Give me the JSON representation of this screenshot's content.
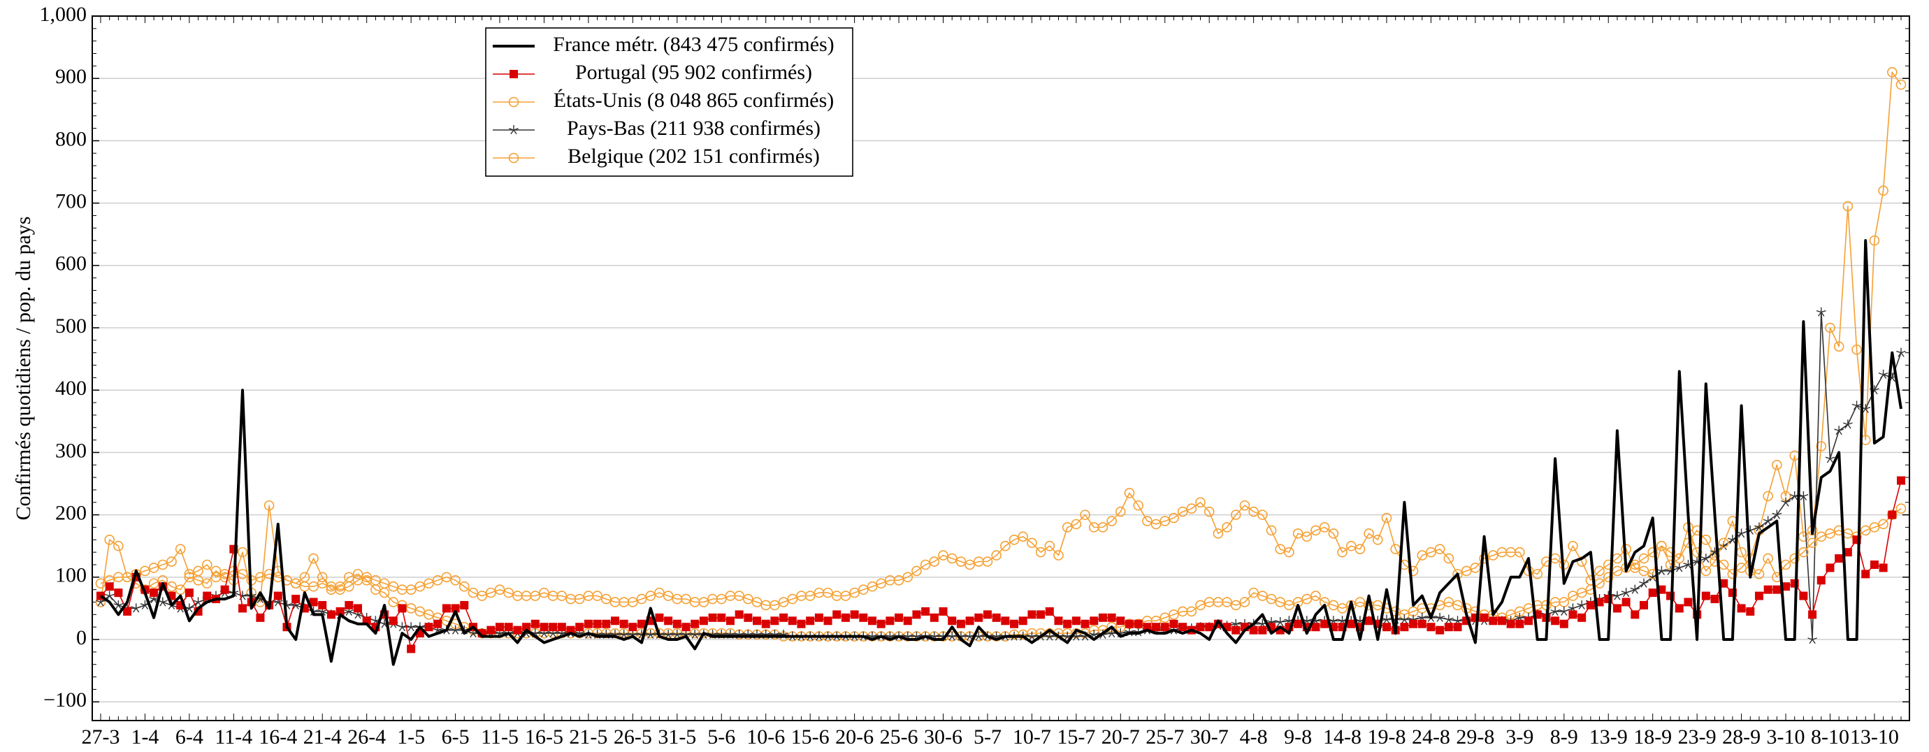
{
  "chart_data": {
    "type": "line",
    "y_label": "Confirmés quotidiens / pop. du pays",
    "categories": [
      "27-3",
      null,
      null,
      null,
      null,
      "1-4",
      null,
      null,
      null,
      null,
      "6-4",
      null,
      null,
      null,
      null,
      "11-4",
      null,
      null,
      null,
      null,
      "16-4",
      null,
      null,
      null,
      null,
      "21-4",
      null,
      null,
      null,
      null,
      "26-4",
      null,
      null,
      null,
      null,
      "1-5",
      null,
      null,
      null,
      null,
      "6-5",
      null,
      null,
      null,
      null,
      "11-5",
      null,
      null,
      null,
      null,
      "16-5",
      null,
      null,
      null,
      null,
      "21-5",
      null,
      null,
      null,
      null,
      "26-5",
      null,
      null,
      null,
      null,
      "31-5",
      null,
      null,
      null,
      null,
      "5-6",
      null,
      null,
      null,
      null,
      "10-6",
      null,
      null,
      null,
      null,
      "15-6",
      null,
      null,
      null,
      null,
      "20-6",
      null,
      null,
      null,
      null,
      "25-6",
      null,
      null,
      null,
      null,
      "30-6",
      null,
      null,
      null,
      null,
      "5-7",
      null,
      null,
      null,
      null,
      "10-7",
      null,
      null,
      null,
      null,
      "15-7",
      null,
      null,
      null,
      null,
      "20-7",
      null,
      null,
      null,
      null,
      "25-7",
      null,
      null,
      null,
      null,
      "30-7",
      null,
      null,
      null,
      null,
      "4-8",
      null,
      null,
      null,
      null,
      "9-8",
      null,
      null,
      null,
      null,
      "14-8",
      null,
      null,
      null,
      null,
      "19-8",
      null,
      null,
      null,
      null,
      "24-8",
      null,
      null,
      null,
      null,
      "29-8",
      null,
      null,
      null,
      null,
      "3-9",
      null,
      null,
      null,
      null,
      "8-9",
      null,
      null,
      null,
      null,
      "13-9",
      null,
      null,
      null,
      null,
      "18-9",
      null,
      null,
      null,
      null,
      "23-9",
      null,
      null,
      null,
      null,
      "28-9",
      null,
      null,
      null,
      null,
      "3-10",
      null,
      null,
      null,
      null,
      "8-10",
      null,
      null,
      null,
      null,
      "13-10",
      null,
      null,
      null
    ],
    "ylim": [
      -130,
      1000
    ],
    "yticks": [
      {
        "value": -100,
        "label": "−100"
      },
      0,
      100,
      200,
      300,
      400,
      500,
      600,
      700,
      800,
      900,
      {
        "value": 1000,
        "label": "1,000"
      }
    ],
    "grid": true,
    "legend": "upper left",
    "series": [
      {
        "name": "France métr. (843 475 confirmés)",
        "color": "#000000",
        "marker": "none",
        "values": [
          70,
          60,
          40,
          60,
          110,
          75,
          35,
          90,
          55,
          70,
          30,
          50,
          60,
          65,
          65,
          70,
          400,
          50,
          75,
          50,
          185,
          20,
          0,
          75,
          40,
          40,
          -35,
          40,
          30,
          25,
          25,
          10,
          55,
          -40,
          10,
          0,
          20,
          5,
          10,
          15,
          45,
          10,
          20,
          5,
          5,
          5,
          10,
          -5,
          15,
          5,
          -5,
          0,
          5,
          10,
          5,
          10,
          5,
          5,
          5,
          0,
          5,
          -5,
          50,
          5,
          0,
          0,
          5,
          -15,
          10,
          5,
          5,
          5,
          5,
          5,
          5,
          5,
          5,
          5,
          5,
          5,
          5,
          5,
          5,
          5,
          5,
          5,
          5,
          0,
          5,
          0,
          5,
          0,
          0,
          5,
          0,
          0,
          20,
          0,
          -10,
          20,
          5,
          0,
          5,
          5,
          5,
          -5,
          5,
          15,
          5,
          -5,
          15,
          10,
          0,
          10,
          20,
          5,
          10,
          10,
          15,
          10,
          10,
          15,
          10,
          15,
          10,
          0,
          30,
          10,
          -5,
          15,
          25,
          40,
          10,
          20,
          10,
          55,
          10,
          40,
          55,
          0,
          0,
          60,
          0,
          70,
          0,
          80,
          10,
          220,
          55,
          70,
          35,
          75,
          90,
          105,
          40,
          -5,
          165,
          40,
          60,
          100,
          100,
          130,
          0,
          0,
          290,
          90,
          125,
          130,
          140,
          0,
          0,
          335,
          110,
          140,
          150,
          195,
          0,
          0,
          430,
          200,
          0,
          410,
          200,
          0,
          0,
          375,
          100,
          170,
          180,
          190,
          0,
          0,
          510,
          170,
          260,
          270,
          300,
          0,
          0,
          640,
          315,
          325,
          460,
          370
        ]
      },
      {
        "name": "Portugal (95 902 confirmés)",
        "color": "#d90000",
        "marker": "square",
        "values": [
          70,
          85,
          75,
          45,
          100,
          80,
          75,
          85,
          70,
          55,
          75,
          45,
          70,
          65,
          80,
          145,
          50,
          60,
          35,
          55,
          70,
          20,
          65,
          50,
          60,
          55,
          40,
          45,
          55,
          50,
          30,
          20,
          40,
          30,
          50,
          -15,
          10,
          20,
          25,
          50,
          50,
          55,
          20,
          10,
          15,
          20,
          20,
          15,
          20,
          25,
          20,
          20,
          20,
          15,
          20,
          25,
          25,
          25,
          30,
          25,
          20,
          25,
          30,
          35,
          30,
          25,
          20,
          25,
          30,
          35,
          35,
          30,
          40,
          35,
          30,
          25,
          30,
          35,
          30,
          25,
          30,
          35,
          30,
          40,
          35,
          40,
          35,
          30,
          25,
          30,
          35,
          30,
          40,
          45,
          35,
          45,
          30,
          25,
          30,
          35,
          40,
          35,
          30,
          25,
          30,
          40,
          40,
          45,
          30,
          25,
          30,
          25,
          30,
          35,
          35,
          30,
          25,
          25,
          20,
          20,
          20,
          25,
          20,
          15,
          20,
          20,
          25,
          20,
          15,
          20,
          15,
          15,
          20,
          15,
          20,
          25,
          20,
          20,
          25,
          20,
          20,
          25,
          20,
          30,
          25,
          20,
          15,
          20,
          25,
          25,
          20,
          15,
          20,
          20,
          30,
          35,
          35,
          30,
          30,
          25,
          25,
          30,
          40,
          35,
          30,
          25,
          40,
          35,
          55,
          60,
          65,
          50,
          60,
          40,
          55,
          75,
          80,
          70,
          50,
          60,
          40,
          70,
          65,
          90,
          75,
          50,
          45,
          70,
          80,
          80,
          85,
          90,
          70,
          40,
          95,
          115,
          130,
          140,
          160,
          105,
          120,
          115,
          200,
          255
        ]
      },
      {
        "name": "États-Unis (8 048 865 confirmés)",
        "color": "#f5a033",
        "marker": "circle",
        "values": [
          90,
          95,
          100,
          100,
          105,
          110,
          115,
          120,
          125,
          145,
          105,
          110,
          120,
          100,
          105,
          110,
          105,
          95,
          100,
          105,
          100,
          95,
          90,
          85,
          85,
          90,
          85,
          80,
          85,
          95,
          100,
          95,
          90,
          85,
          80,
          80,
          85,
          90,
          95,
          100,
          95,
          85,
          75,
          70,
          75,
          80,
          75,
          70,
          70,
          70,
          75,
          70,
          70,
          65,
          65,
          70,
          70,
          65,
          60,
          60,
          60,
          65,
          70,
          75,
          70,
          65,
          65,
          60,
          60,
          65,
          65,
          70,
          70,
          65,
          60,
          55,
          55,
          60,
          65,
          70,
          70,
          75,
          75,
          70,
          70,
          75,
          80,
          85,
          90,
          95,
          95,
          100,
          110,
          120,
          125,
          135,
          130,
          125,
          120,
          125,
          125,
          135,
          150,
          160,
          165,
          155,
          140,
          150,
          135,
          180,
          185,
          200,
          180,
          180,
          190,
          205,
          235,
          215,
          190,
          185,
          190,
          195,
          205,
          210,
          220,
          205,
          170,
          180,
          200,
          215,
          205,
          200,
          175,
          145,
          140,
          170,
          165,
          175,
          180,
          170,
          140,
          150,
          145,
          170,
          160,
          195,
          145,
          120,
          110,
          135,
          140,
          145,
          130,
          105,
          110,
          115,
          130,
          135,
          140,
          140,
          140,
          110,
          105,
          125,
          130,
          120,
          150,
          125,
          95,
          110,
          120,
          130,
          145,
          115,
          110,
          105,
          150,
          120,
          130,
          180,
          140,
          110,
          125,
          155,
          190,
          140,
          110,
          105,
          130,
          100,
          120,
          130,
          140,
          155,
          165,
          170,
          175,
          170,
          165,
          175,
          180,
          185,
          200,
          210
        ]
      },
      {
        "name": "Pays-Bas (211 938 confirmés)",
        "color": "#333333",
        "marker": "star",
        "values": [
          60,
          70,
          55,
          50,
          50,
          55,
          65,
          60,
          55,
          50,
          50,
          60,
          65,
          70,
          75,
          75,
          70,
          70,
          65,
          60,
          60,
          55,
          55,
          50,
          45,
          45,
          40,
          40,
          45,
          40,
          35,
          30,
          25,
          25,
          20,
          20,
          20,
          20,
          15,
          15,
          15,
          15,
          10,
          10,
          10,
          10,
          10,
          10,
          10,
          10,
          10,
          10,
          10,
          10,
          10,
          8,
          8,
          8,
          8,
          8,
          8,
          8,
          8,
          8,
          8,
          8,
          8,
          8,
          8,
          8,
          8,
          8,
          8,
          8,
          8,
          8,
          8,
          8,
          5,
          5,
          5,
          5,
          5,
          5,
          5,
          5,
          5,
          5,
          5,
          5,
          5,
          5,
          5,
          5,
          5,
          5,
          5,
          5,
          5,
          5,
          5,
          5,
          5,
          5,
          5,
          5,
          5,
          5,
          5,
          5,
          5,
          5,
          8,
          8,
          10,
          10,
          12,
          12,
          15,
          15,
          15,
          15,
          18,
          18,
          20,
          20,
          22,
          22,
          25,
          25,
          25,
          25,
          28,
          28,
          30,
          30,
          30,
          30,
          30,
          30,
          30,
          30,
          30,
          30,
          30,
          32,
          32,
          32,
          32,
          35,
          35,
          35,
          32,
          30,
          30,
          30,
          30,
          30,
          30,
          30,
          35,
          35,
          40,
          40,
          45,
          45,
          50,
          55,
          60,
          65,
          70,
          70,
          75,
          80,
          90,
          100,
          110,
          110,
          115,
          120,
          125,
          130,
          140,
          150,
          160,
          170,
          175,
          180,
          190,
          200,
          220,
          230,
          230,
          0,
          525,
          290,
          335,
          345,
          375,
          370,
          400,
          425,
          420,
          460
        ]
      },
      {
        "name": "Belgique (202 151 confirmés)",
        "color": "#f5a033",
        "marker": "circle",
        "values": [
          60,
          160,
          150,
          100,
          90,
          80,
          90,
          95,
          85,
          80,
          100,
          95,
          90,
          110,
          100,
          95,
          140,
          75,
          60,
          215,
          110,
          95,
          90,
          100,
          130,
          100,
          80,
          85,
          100,
          105,
          95,
          80,
          75,
          60,
          55,
          50,
          45,
          40,
          35,
          30,
          25,
          20,
          15,
          10,
          10,
          10,
          10,
          10,
          10,
          10,
          10,
          10,
          10,
          10,
          10,
          10,
          10,
          10,
          10,
          10,
          10,
          10,
          10,
          10,
          10,
          10,
          10,
          10,
          10,
          10,
          10,
          10,
          8,
          8,
          8,
          8,
          8,
          5,
          5,
          5,
          5,
          5,
          5,
          5,
          5,
          5,
          5,
          5,
          5,
          5,
          5,
          5,
          5,
          5,
          5,
          5,
          5,
          5,
          5,
          5,
          5,
          5,
          5,
          8,
          8,
          10,
          10,
          10,
          10,
          10,
          10,
          10,
          15,
          15,
          20,
          20,
          25,
          25,
          30,
          30,
          35,
          40,
          45,
          45,
          55,
          60,
          60,
          60,
          55,
          60,
          75,
          70,
          65,
          60,
          55,
          60,
          65,
          70,
          60,
          55,
          50,
          55,
          60,
          55,
          55,
          50,
          45,
          40,
          45,
          50,
          50,
          55,
          60,
          55,
          50,
          45,
          40,
          40,
          35,
          40,
          45,
          50,
          55,
          55,
          60,
          60,
          70,
          75,
          80,
          90,
          100,
          110,
          115,
          120,
          130,
          140,
          150,
          140,
          130,
          155,
          175,
          160,
          135,
          120,
          105,
          115,
          130,
          175,
          230,
          280,
          230,
          295,
          165,
          175,
          310,
          500,
          470,
          695,
          465,
          320,
          640,
          720,
          910,
          890
        ]
      }
    ]
  }
}
